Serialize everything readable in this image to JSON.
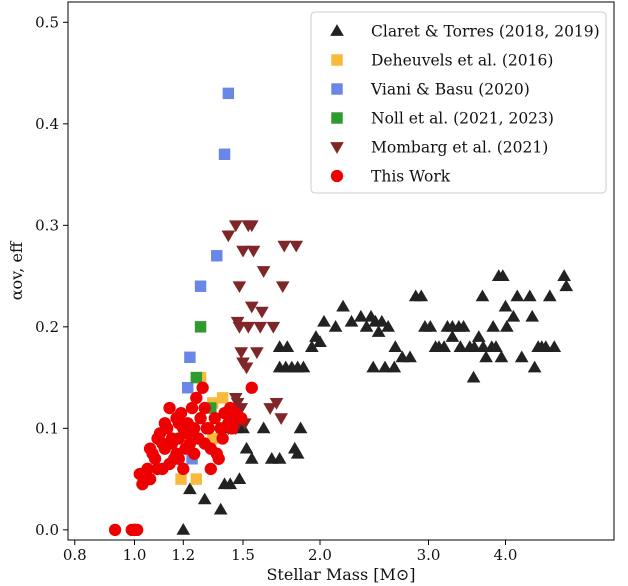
{
  "chart_data": {
    "type": "scatter",
    "xlabel": "Stellar Mass [M⊙]",
    "ylabel": "αov, eff",
    "x_scale": "log",
    "xlim": [
      0.78,
      6.0
    ],
    "ylim": [
      -0.01,
      0.52
    ],
    "x_ticks": [
      {
        "value": 0.8,
        "label": "0.8"
      },
      {
        "value": 1.0,
        "label": "1.0"
      },
      {
        "value": 1.2,
        "label": "1.2"
      },
      {
        "value": 1.5,
        "label": "1.5"
      },
      {
        "value": 2.0,
        "label": "2.0"
      },
      {
        "value": 3.0,
        "label": "3.0"
      },
      {
        "value": 4.0,
        "label": "4.0"
      }
    ],
    "y_ticks": [
      {
        "value": 0.0,
        "label": "0.0"
      },
      {
        "value": 0.1,
        "label": "0.1"
      },
      {
        "value": 0.2,
        "label": "0.2"
      },
      {
        "value": 0.3,
        "label": "0.3"
      },
      {
        "value": 0.4,
        "label": "0.4"
      },
      {
        "value": 0.5,
        "label": "0.5"
      }
    ],
    "grid": false,
    "legend_position": "top-right",
    "series": [
      {
        "name": "Claret & Torres (2018, 2019)",
        "marker": "triangle-up",
        "color": "#222222",
        "points": [
          [
            1.2,
            0.0
          ],
          [
            1.23,
            0.04
          ],
          [
            1.3,
            0.03
          ],
          [
            1.38,
            0.02
          ],
          [
            1.4,
            0.045
          ],
          [
            1.43,
            0.045
          ],
          [
            1.48,
            0.05
          ],
          [
            1.55,
            0.07
          ],
          [
            1.42,
            0.1
          ],
          [
            1.46,
            0.1
          ],
          [
            1.5,
            0.1
          ],
          [
            1.52,
            0.08
          ],
          [
            1.62,
            0.1
          ],
          [
            1.67,
            0.07
          ],
          [
            1.72,
            0.07
          ],
          [
            1.82,
            0.08
          ],
          [
            1.84,
            0.075
          ],
          [
            1.86,
            0.1
          ],
          [
            1.72,
            0.16
          ],
          [
            1.76,
            0.16
          ],
          [
            1.8,
            0.16
          ],
          [
            1.84,
            0.16
          ],
          [
            1.88,
            0.16
          ],
          [
            1.72,
            0.18
          ],
          [
            1.77,
            0.18
          ],
          [
            1.94,
            0.18
          ],
          [
            1.97,
            0.19
          ],
          [
            2.0,
            0.185
          ],
          [
            2.03,
            0.205
          ],
          [
            2.12,
            0.2
          ],
          [
            2.18,
            0.22
          ],
          [
            2.25,
            0.205
          ],
          [
            2.33,
            0.21
          ],
          [
            2.38,
            0.2
          ],
          [
            2.42,
            0.21
          ],
          [
            2.46,
            0.205
          ],
          [
            2.52,
            0.205
          ],
          [
            2.58,
            0.2
          ],
          [
            2.49,
            0.195
          ],
          [
            2.55,
            0.16
          ],
          [
            2.44,
            0.16
          ],
          [
            2.64,
            0.16
          ],
          [
            2.65,
            0.18
          ],
          [
            2.72,
            0.17
          ],
          [
            2.8,
            0.17
          ],
          [
            2.86,
            0.23
          ],
          [
            2.92,
            0.23
          ],
          [
            2.96,
            0.2
          ],
          [
            3.02,
            0.2
          ],
          [
            3.08,
            0.18
          ],
          [
            3.12,
            0.18
          ],
          [
            3.18,
            0.18
          ],
          [
            3.22,
            0.2
          ],
          [
            3.28,
            0.2
          ],
          [
            3.36,
            0.2
          ],
          [
            3.42,
            0.2
          ],
          [
            3.38,
            0.18
          ],
          [
            3.5,
            0.18
          ],
          [
            3.56,
            0.18
          ],
          [
            3.28,
            0.19
          ],
          [
            3.55,
            0.15
          ],
          [
            3.62,
            0.19
          ],
          [
            3.68,
            0.18
          ],
          [
            3.72,
            0.17
          ],
          [
            3.8,
            0.18
          ],
          [
            3.86,
            0.18
          ],
          [
            3.94,
            0.17
          ],
          [
            3.82,
            0.2
          ],
          [
            3.9,
            0.25
          ],
          [
            3.96,
            0.25
          ],
          [
            3.67,
            0.23
          ],
          [
            4.0,
            0.22
          ],
          [
            4.02,
            0.2
          ],
          [
            4.12,
            0.21
          ],
          [
            4.18,
            0.23
          ],
          [
            4.25,
            0.17
          ],
          [
            4.38,
            0.23
          ],
          [
            4.42,
            0.21
          ],
          [
            4.46,
            0.16
          ],
          [
            4.52,
            0.18
          ],
          [
            4.58,
            0.18
          ],
          [
            4.65,
            0.18
          ],
          [
            4.8,
            0.18
          ],
          [
            4.72,
            0.23
          ],
          [
            4.98,
            0.25
          ],
          [
            5.02,
            0.24
          ]
        ]
      },
      {
        "name": "Deheuvels et al. (2016)",
        "marker": "square",
        "color": "#f9b93a",
        "points": [
          [
            1.19,
            0.05
          ],
          [
            1.26,
            0.05
          ],
          [
            1.28,
            0.15
          ],
          [
            1.34,
            0.09
          ],
          [
            1.39,
            0.13
          ],
          [
            1.34,
            0.125
          ]
        ]
      },
      {
        "name": "Viani & Basu (2020)",
        "marker": "square",
        "color": "#6a87e8",
        "points": [
          [
            1.22,
            0.14
          ],
          [
            1.23,
            0.17
          ],
          [
            1.28,
            0.24
          ],
          [
            1.36,
            0.27
          ],
          [
            1.4,
            0.37
          ],
          [
            1.42,
            0.43
          ],
          [
            1.24,
            0.07
          ]
        ]
      },
      {
        "name": "Noll et al. (2021, 2023)",
        "marker": "square",
        "color": "#2e9a30",
        "points": [
          [
            1.26,
            0.15
          ],
          [
            1.28,
            0.2
          ],
          [
            1.33,
            0.12
          ]
        ]
      },
      {
        "name": "Mombarg et al. (2021)",
        "marker": "triangle-down",
        "color": "#7f2628",
        "points": [
          [
            1.42,
            0.1
          ],
          [
            1.44,
            0.11
          ],
          [
            1.46,
            0.1
          ],
          [
            1.49,
            0.12
          ],
          [
            1.51,
            0.105
          ],
          [
            1.46,
            0.13
          ],
          [
            1.47,
            0.125
          ],
          [
            1.42,
            0.29
          ],
          [
            1.46,
            0.3
          ],
          [
            1.5,
            0.275
          ],
          [
            1.53,
            0.3
          ],
          [
            1.55,
            0.3
          ],
          [
            1.48,
            0.24
          ],
          [
            1.56,
            0.275
          ],
          [
            1.62,
            0.255
          ],
          [
            1.75,
            0.28
          ],
          [
            1.83,
            0.28
          ],
          [
            1.48,
            0.2
          ],
          [
            1.49,
            0.175
          ],
          [
            1.5,
            0.165
          ],
          [
            1.52,
            0.16
          ],
          [
            1.53,
            0.2
          ],
          [
            1.58,
            0.175
          ],
          [
            1.47,
            0.205
          ],
          [
            1.6,
            0.2
          ],
          [
            1.55,
            0.22
          ],
          [
            1.61,
            0.215
          ],
          [
            1.68,
            0.2
          ],
          [
            1.74,
            0.24
          ],
          [
            1.66,
            0.12
          ],
          [
            1.7,
            0.125
          ],
          [
            1.73,
            0.11
          ]
        ]
      },
      {
        "name": "This Work",
        "marker": "circle",
        "color": "#ee0000",
        "points": [
          [
            0.93,
            0.0
          ],
          [
            0.99,
            0.0
          ],
          [
            1.0,
            0.0
          ],
          [
            1.01,
            0.0
          ],
          [
            1.0,
            0.0
          ],
          [
            1.03,
            0.045
          ],
          [
            1.04,
            0.05
          ],
          [
            1.05,
            0.06
          ],
          [
            1.06,
            0.05
          ],
          [
            1.08,
            0.07
          ],
          [
            1.09,
            0.06
          ],
          [
            1.11,
            0.06
          ],
          [
            1.12,
            0.08
          ],
          [
            1.14,
            0.065
          ],
          [
            1.16,
            0.07
          ],
          [
            1.18,
            0.07
          ],
          [
            1.2,
            0.06
          ],
          [
            1.06,
            0.08
          ],
          [
            1.09,
            0.09
          ],
          [
            1.11,
            0.085
          ],
          [
            1.13,
            0.1
          ],
          [
            1.15,
            0.09
          ],
          [
            1.18,
            0.09
          ],
          [
            1.2,
            0.1
          ],
          [
            1.22,
            0.095
          ],
          [
            1.25,
            0.1
          ],
          [
            1.27,
            0.09
          ],
          [
            1.3,
            0.085
          ],
          [
            1.33,
            0.08
          ],
          [
            1.36,
            0.075
          ],
          [
            1.28,
            0.11
          ],
          [
            1.3,
            0.12
          ],
          [
            1.32,
            0.1
          ],
          [
            1.35,
            0.11
          ],
          [
            1.38,
            0.1
          ],
          [
            1.4,
            0.115
          ],
          [
            1.43,
            0.12
          ],
          [
            1.46,
            0.115
          ],
          [
            1.49,
            0.11
          ],
          [
            1.14,
            0.12
          ],
          [
            1.17,
            0.11
          ],
          [
            1.19,
            0.115
          ],
          [
            1.22,
            0.105
          ],
          [
            1.24,
            0.12
          ],
          [
            1.26,
            0.13
          ],
          [
            1.29,
            0.14
          ],
          [
            1.55,
            0.14
          ],
          [
            1.33,
            0.06
          ],
          [
            1.37,
            0.07
          ],
          [
            1.02,
            0.055
          ],
          [
            1.05,
            0.06
          ],
          [
            1.07,
            0.075
          ],
          [
            1.1,
            0.095
          ],
          [
            1.12,
            0.105
          ],
          [
            1.15,
            0.085
          ],
          [
            1.17,
            0.075
          ],
          [
            1.21,
            0.08
          ],
          [
            1.23,
            0.085
          ],
          [
            1.42,
            0.105
          ],
          [
            1.18,
            0.105
          ],
          [
            1.25,
            0.075
          ],
          [
            1.44,
            0.1
          ],
          [
            1.31,
            0.1
          ],
          [
            1.39,
            0.09
          ],
          [
            1.47,
            0.11
          ]
        ]
      }
    ]
  }
}
